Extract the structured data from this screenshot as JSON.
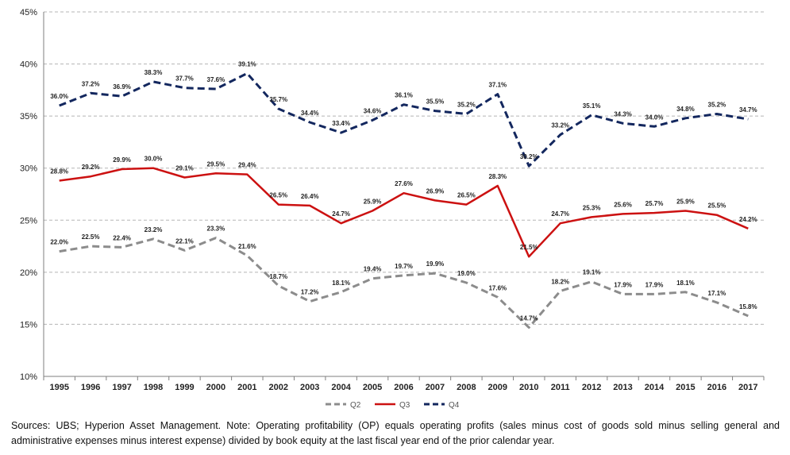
{
  "chart_data": {
    "type": "line",
    "x": [
      "1995",
      "1996",
      "1997",
      "1998",
      "1999",
      "2000",
      "2001",
      "2002",
      "2003",
      "2004",
      "2005",
      "2006",
      "2007",
      "2008",
      "2009",
      "2010",
      "2011",
      "2012",
      "2013",
      "2014",
      "2015",
      "2016",
      "2017"
    ],
    "ylim": [
      10,
      45
    ],
    "yticks": [
      "10%",
      "15%",
      "20%",
      "25%",
      "30%",
      "35%",
      "40%",
      "45%"
    ],
    "grid": true,
    "legend_position": "bottom",
    "series": [
      {
        "name": "Q2",
        "color": "#8c8c8c",
        "style": "dashed",
        "values": [
          22.0,
          22.5,
          22.4,
          23.2,
          22.1,
          23.3,
          21.6,
          18.7,
          17.2,
          18.1,
          19.4,
          19.7,
          19.9,
          19.0,
          17.6,
          14.7,
          18.2,
          19.1,
          17.9,
          17.9,
          18.1,
          17.1,
          15.8
        ],
        "labels": [
          "22.0%",
          "22.5%",
          "22.4%",
          "23.2%",
          "22.1%",
          "23.3%",
          "21.6%",
          "18.7%",
          "17.2%",
          "18.1%",
          "19.4%",
          "19.7%",
          "19.9%",
          "19.0%",
          "17.6%",
          "14.7%",
          "18.2%",
          "19.1%",
          "17.9%",
          "17.9%",
          "18.1%",
          "17.1%",
          "15.8%"
        ]
      },
      {
        "name": "Q3",
        "color": "#cc1111",
        "style": "solid",
        "values": [
          28.8,
          29.2,
          29.9,
          30.0,
          29.1,
          29.5,
          29.4,
          26.5,
          26.4,
          24.7,
          25.9,
          27.6,
          26.9,
          26.5,
          28.3,
          21.5,
          24.7,
          25.3,
          25.6,
          25.7,
          25.9,
          25.5,
          24.2
        ],
        "labels": [
          "28.8%",
          "29.2%",
          "29.9%",
          "30.0%",
          "29.1%",
          "29.5%",
          "29.4%",
          "26.5%",
          "26.4%",
          "24.7%",
          "25.9%",
          "27.6%",
          "26.9%",
          "26.5%",
          "28.3%",
          "21.5%",
          "24.7%",
          "25.3%",
          "25.6%",
          "25.7%",
          "25.9%",
          "25.5%",
          "24.2%"
        ]
      },
      {
        "name": "Q4",
        "color": "#13275e",
        "style": "dashed",
        "values": [
          36.0,
          37.2,
          36.9,
          38.3,
          37.7,
          37.6,
          39.1,
          35.7,
          34.4,
          33.4,
          34.6,
          36.1,
          35.5,
          35.2,
          37.1,
          30.2,
          33.2,
          35.1,
          34.3,
          34.0,
          34.8,
          35.2,
          34.7
        ],
        "labels": [
          "36.0%",
          "37.2%",
          "36.9%",
          "38.3%",
          "37.7%",
          "37.6%",
          "39.1%",
          "35.7%",
          "34.4%",
          "33.4%",
          "34.6%",
          "36.1%",
          "35.5%",
          "35.2%",
          "37.1%",
          "30.2%",
          "33.2%",
          "35.1%",
          "34.3%",
          "34.0%",
          "34.8%",
          "35.2%",
          "34.7%"
        ]
      }
    ]
  },
  "note": {
    "text": "Sources: UBS; Hyperion Asset Management. Note: Operating profitability (OP) equals operating profits (sales minus cost of goods sold minus selling general and administrative expenses minus interest expense) divided by book equity at the last fiscal year end of the prior calendar year."
  }
}
